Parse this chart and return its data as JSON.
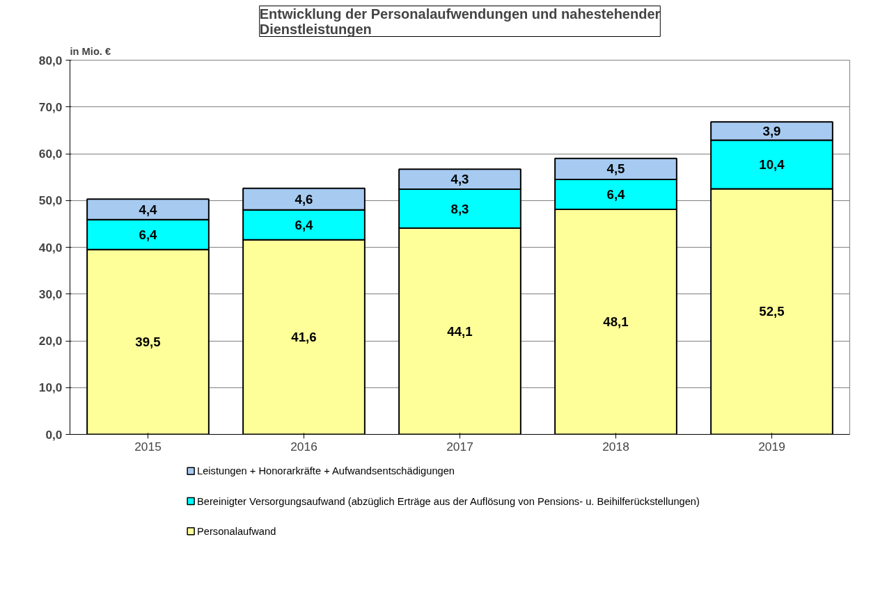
{
  "chart_data": {
    "type": "bar",
    "stacked": true,
    "title": "Entwicklung der Personalaufwendungen und nahestehender\nDienstleistungen",
    "ylabel": "in Mio. €",
    "categories": [
      "2015",
      "2016",
      "2017",
      "2018",
      "2019"
    ],
    "series": [
      {
        "name": "Personalaufwand",
        "color": "#ffff99",
        "values": [
          39.5,
          41.6,
          44.1,
          48.1,
          52.5
        ],
        "value_labels": [
          "39,5",
          "41,6",
          "44,1",
          "48,1",
          "52,5"
        ]
      },
      {
        "name": "Bereinigter Versorgungsaufwand (abzüglich Erträge aus der Auflösung von Pensions- u. Beihilferückstellungen)",
        "color": "#00ffff",
        "values": [
          6.4,
          6.4,
          8.3,
          6.4,
          10.4
        ],
        "value_labels": [
          "6,4",
          "6,4",
          "8,3",
          "6,4",
          "10,4"
        ]
      },
      {
        "name": "Leistungen + Honorarkräfte + Aufwandsentschädigungen",
        "color": "#a6caf0",
        "values": [
          4.4,
          4.6,
          4.3,
          4.5,
          3.9
        ],
        "value_labels": [
          "4,4",
          "4,6",
          "4,3",
          "4,5",
          "3,9"
        ]
      }
    ],
    "ylim": [
      0,
      80
    ],
    "yticks": [
      {
        "value": 0,
        "label": "0,0"
      },
      {
        "value": 10,
        "label": "10,0"
      },
      {
        "value": 20,
        "label": "20,0"
      },
      {
        "value": 30,
        "label": "30,0"
      },
      {
        "value": 40,
        "label": "40,0"
      },
      {
        "value": 50,
        "label": "50,0"
      },
      {
        "value": 60,
        "label": "60,0"
      },
      {
        "value": 70,
        "label": "70,0"
      },
      {
        "value": 80,
        "label": "80,0"
      }
    ],
    "grid": "y",
    "legend": "bottom"
  }
}
